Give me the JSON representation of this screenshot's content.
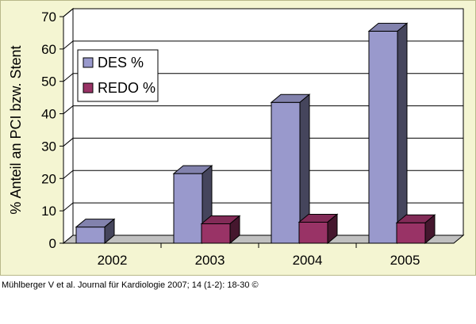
{
  "chart_data": {
    "type": "bar",
    "categories": [
      "2002",
      "2003",
      "2004",
      "2005"
    ],
    "series": [
      {
        "name": "DES %",
        "values": [
          5,
          21.5,
          43.5,
          65.5
        ],
        "color": "#9999cc"
      },
      {
        "name": "REDO %",
        "values": [
          0,
          6,
          6.5,
          6.3
        ],
        "color": "#993366"
      }
    ],
    "ylabel": "% Anteil an PCI bzw. Stent",
    "ylim": [
      0,
      70
    ],
    "yticks": [
      0,
      10,
      20,
      30,
      40,
      50,
      60,
      70
    ],
    "grid": true,
    "legend": "top-left",
    "three_d": true
  },
  "credit": "Mühlberger V et al. Journal für Kardiologie 2007; 14 (1-2): 18-30 ©"
}
